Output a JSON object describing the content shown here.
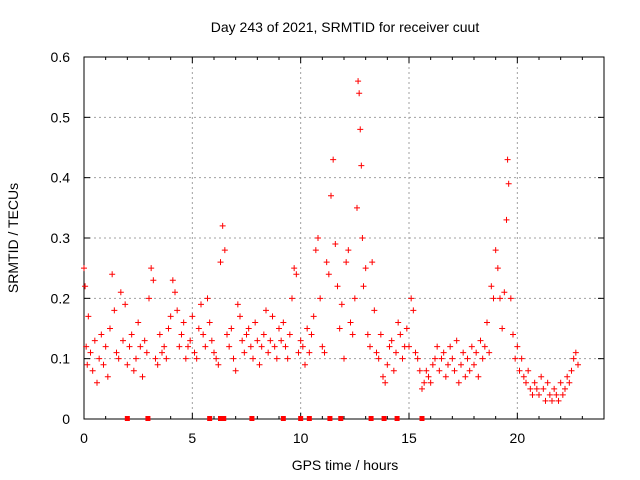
{
  "chart_data": {
    "type": "scatter",
    "title": "Day 243 of 2021, SRMTID for receiver cuut",
    "xlabel": "GPS time / hours",
    "ylabel": "SRMTID / TECUs",
    "xlim": [
      0,
      24
    ],
    "ylim": [
      0,
      0.6
    ],
    "x_ticks": [
      0,
      5,
      10,
      15,
      20
    ],
    "x_tick_labels": [
      "0",
      "5",
      "10",
      "15",
      "20"
    ],
    "y_ticks": [
      0,
      0.1,
      0.2,
      0.3,
      0.4,
      0.5,
      0.6
    ],
    "y_tick_labels": [
      "0",
      "0.1",
      "0.2",
      "0.3",
      "0.4",
      "0.5",
      "0.6"
    ],
    "grid": true,
    "marker": "+",
    "color": "#ff0000",
    "series": [
      {
        "name": "SRMTID",
        "points": [
          [
            0.0,
            0.25
          ],
          [
            0.05,
            0.22
          ],
          [
            0.1,
            0.12
          ],
          [
            0.15,
            0.09
          ],
          [
            0.2,
            0.17
          ],
          [
            0.3,
            0.11
          ],
          [
            0.4,
            0.08
          ],
          [
            0.5,
            0.13
          ],
          [
            0.6,
            0.06
          ],
          [
            0.7,
            0.1
          ],
          [
            0.8,
            0.14
          ],
          [
            0.9,
            0.09
          ],
          [
            1.0,
            0.12
          ],
          [
            1.1,
            0.07
          ],
          [
            1.2,
            0.15
          ],
          [
            1.3,
            0.24
          ],
          [
            1.4,
            0.18
          ],
          [
            1.5,
            0.11
          ],
          [
            1.6,
            0.1
          ],
          [
            1.7,
            0.21
          ],
          [
            1.8,
            0.13
          ],
          [
            1.9,
            0.19
          ],
          [
            2.0,
            0.09
          ],
          [
            2.1,
            0.12
          ],
          [
            2.2,
            0.14
          ],
          [
            2.3,
            0.08
          ],
          [
            2.4,
            0.1
          ],
          [
            2.5,
            0.16
          ],
          [
            2.6,
            0.12
          ],
          [
            2.7,
            0.07
          ],
          [
            2.8,
            0.13
          ],
          [
            2.9,
            0.11
          ],
          [
            3.0,
            0.2
          ],
          [
            3.1,
            0.25
          ],
          [
            3.2,
            0.23
          ],
          [
            3.3,
            0.1
          ],
          [
            3.4,
            0.09
          ],
          [
            3.5,
            0.14
          ],
          [
            3.6,
            0.11
          ],
          [
            3.7,
            0.12
          ],
          [
            3.8,
            0.1
          ],
          [
            3.9,
            0.15
          ],
          [
            4.0,
            0.17
          ],
          [
            4.1,
            0.23
          ],
          [
            4.2,
            0.21
          ],
          [
            4.3,
            0.18
          ],
          [
            4.4,
            0.12
          ],
          [
            4.5,
            0.14
          ],
          [
            4.6,
            0.16
          ],
          [
            4.7,
            0.1
          ],
          [
            4.8,
            0.12
          ],
          [
            4.9,
            0.13
          ],
          [
            5.0,
            0.17
          ],
          [
            5.1,
            0.11
          ],
          [
            5.2,
            0.1
          ],
          [
            5.3,
            0.15
          ],
          [
            5.4,
            0.19
          ],
          [
            5.5,
            0.14
          ],
          [
            5.6,
            0.12
          ],
          [
            5.7,
            0.2
          ],
          [
            5.8,
            0.16
          ],
          [
            5.9,
            0.13
          ],
          [
            6.0,
            0.11
          ],
          [
            6.1,
            0.1
          ],
          [
            6.2,
            0.09
          ],
          [
            6.3,
            0.26
          ],
          [
            6.4,
            0.32
          ],
          [
            6.5,
            0.28
          ],
          [
            6.6,
            0.14
          ],
          [
            6.7,
            0.12
          ],
          [
            6.8,
            0.15
          ],
          [
            6.9,
            0.1
          ],
          [
            7.0,
            0.08
          ],
          [
            7.1,
            0.19
          ],
          [
            7.2,
            0.17
          ],
          [
            7.3,
            0.13
          ],
          [
            7.4,
            0.11
          ],
          [
            7.5,
            0.14
          ],
          [
            7.6,
            0.15
          ],
          [
            7.7,
            0.12
          ],
          [
            7.8,
            0.1
          ],
          [
            7.9,
            0.16
          ],
          [
            8.0,
            0.13
          ],
          [
            8.1,
            0.09
          ],
          [
            8.2,
            0.12
          ],
          [
            8.3,
            0.14
          ],
          [
            8.4,
            0.18
          ],
          [
            8.5,
            0.11
          ],
          [
            8.6,
            0.13
          ],
          [
            8.7,
            0.17
          ],
          [
            8.8,
            0.12
          ],
          [
            8.9,
            0.1
          ],
          [
            9.0,
            0.15
          ],
          [
            9.1,
            0.13
          ],
          [
            9.2,
            0.16
          ],
          [
            9.3,
            0.12
          ],
          [
            9.4,
            0.1
          ],
          [
            9.5,
            0.14
          ],
          [
            9.6,
            0.2
          ],
          [
            9.7,
            0.25
          ],
          [
            9.8,
            0.24
          ],
          [
            9.9,
            0.11
          ],
          [
            10.0,
            0.13
          ],
          [
            10.1,
            0.12
          ],
          [
            10.2,
            0.09
          ],
          [
            10.3,
            0.15
          ],
          [
            10.4,
            0.11
          ],
          [
            10.5,
            0.14
          ],
          [
            10.6,
            0.17
          ],
          [
            10.7,
            0.28
          ],
          [
            10.8,
            0.3
          ],
          [
            10.9,
            0.2
          ],
          [
            11.0,
            0.12
          ],
          [
            11.1,
            0.11
          ],
          [
            11.2,
            0.26
          ],
          [
            11.3,
            0.24
          ],
          [
            11.4,
            0.37
          ],
          [
            11.5,
            0.43
          ],
          [
            11.6,
            0.29
          ],
          [
            11.7,
            0.22
          ],
          [
            11.8,
            0.15
          ],
          [
            11.9,
            0.19
          ],
          [
            12.0,
            0.1
          ],
          [
            12.1,
            0.26
          ],
          [
            12.2,
            0.28
          ],
          [
            12.3,
            0.16
          ],
          [
            12.4,
            0.14
          ],
          [
            12.5,
            0.2
          ],
          [
            12.6,
            0.35
          ],
          [
            12.65,
            0.56
          ],
          [
            12.7,
            0.54
          ],
          [
            12.75,
            0.48
          ],
          [
            12.8,
            0.42
          ],
          [
            12.85,
            0.3
          ],
          [
            12.9,
            0.22
          ],
          [
            13.0,
            0.25
          ],
          [
            13.1,
            0.14
          ],
          [
            13.2,
            0.12
          ],
          [
            13.3,
            0.26
          ],
          [
            13.4,
            0.18
          ],
          [
            13.5,
            0.11
          ],
          [
            13.6,
            0.1
          ],
          [
            13.7,
            0.14
          ],
          [
            13.8,
            0.07
          ],
          [
            13.9,
            0.06
          ],
          [
            14.0,
            0.09
          ],
          [
            14.1,
            0.12
          ],
          [
            14.2,
            0.13
          ],
          [
            14.3,
            0.08
          ],
          [
            14.4,
            0.11
          ],
          [
            14.5,
            0.16
          ],
          [
            14.6,
            0.14
          ],
          [
            14.7,
            0.1
          ],
          [
            14.8,
            0.12
          ],
          [
            14.9,
            0.15
          ],
          [
            15.0,
            0.12
          ],
          [
            15.1,
            0.2
          ],
          [
            15.2,
            0.18
          ],
          [
            15.3,
            0.11
          ],
          [
            15.4,
            0.1
          ],
          [
            15.5,
            0.08
          ],
          [
            15.6,
            0.05
          ],
          [
            15.7,
            0.06
          ],
          [
            15.8,
            0.08
          ],
          [
            15.9,
            0.07
          ],
          [
            16.0,
            0.06
          ],
          [
            16.1,
            0.09
          ],
          [
            16.2,
            0.1
          ],
          [
            16.3,
            0.12
          ],
          [
            16.4,
            0.08
          ],
          [
            16.5,
            0.1
          ],
          [
            16.6,
            0.11
          ],
          [
            16.7,
            0.07
          ],
          [
            16.8,
            0.09
          ],
          [
            16.9,
            0.12
          ],
          [
            17.0,
            0.1
          ],
          [
            17.1,
            0.08
          ],
          [
            17.2,
            0.13
          ],
          [
            17.3,
            0.06
          ],
          [
            17.4,
            0.09
          ],
          [
            17.5,
            0.11
          ],
          [
            17.6,
            0.07
          ],
          [
            17.7,
            0.1
          ],
          [
            17.8,
            0.08
          ],
          [
            17.9,
            0.12
          ],
          [
            18.0,
            0.09
          ],
          [
            18.1,
            0.11
          ],
          [
            18.2,
            0.07
          ],
          [
            18.3,
            0.13
          ],
          [
            18.4,
            0.1
          ],
          [
            18.5,
            0.12
          ],
          [
            18.6,
            0.16
          ],
          [
            18.7,
            0.11
          ],
          [
            18.8,
            0.22
          ],
          [
            18.9,
            0.2
          ],
          [
            19.0,
            0.28
          ],
          [
            19.1,
            0.25
          ],
          [
            19.2,
            0.2
          ],
          [
            19.3,
            0.15
          ],
          [
            19.4,
            0.21
          ],
          [
            19.5,
            0.33
          ],
          [
            19.55,
            0.43
          ],
          [
            19.6,
            0.39
          ],
          [
            19.7,
            0.2
          ],
          [
            19.8,
            0.14
          ],
          [
            19.9,
            0.1
          ],
          [
            20.0,
            0.12
          ],
          [
            20.1,
            0.08
          ],
          [
            20.2,
            0.1
          ],
          [
            20.3,
            0.07
          ],
          [
            20.4,
            0.06
          ],
          [
            20.5,
            0.08
          ],
          [
            20.6,
            0.05
          ],
          [
            20.7,
            0.04
          ],
          [
            20.8,
            0.06
          ],
          [
            20.9,
            0.05
          ],
          [
            21.0,
            0.04
          ],
          [
            21.1,
            0.07
          ],
          [
            21.2,
            0.05
          ],
          [
            21.3,
            0.03
          ],
          [
            21.4,
            0.06
          ],
          [
            21.5,
            0.04
          ],
          [
            21.6,
            0.03
          ],
          [
            21.7,
            0.05
          ],
          [
            21.8,
            0.04
          ],
          [
            21.9,
            0.03
          ],
          [
            22.0,
            0.06
          ],
          [
            22.1,
            0.04
          ],
          [
            22.2,
            0.05
          ],
          [
            22.3,
            0.07
          ],
          [
            22.4,
            0.06
          ],
          [
            22.5,
            0.08
          ],
          [
            22.6,
            0.1
          ],
          [
            22.7,
            0.11
          ],
          [
            22.8,
            0.09
          ]
        ]
      }
    ],
    "baseline_markers_x": [
      2.0,
      2.95,
      5.8,
      6.3,
      6.45,
      7.75,
      9.2,
      10.0,
      10.4,
      11.35,
      11.85,
      13.25,
      13.85,
      14.45,
      15.6
    ]
  }
}
